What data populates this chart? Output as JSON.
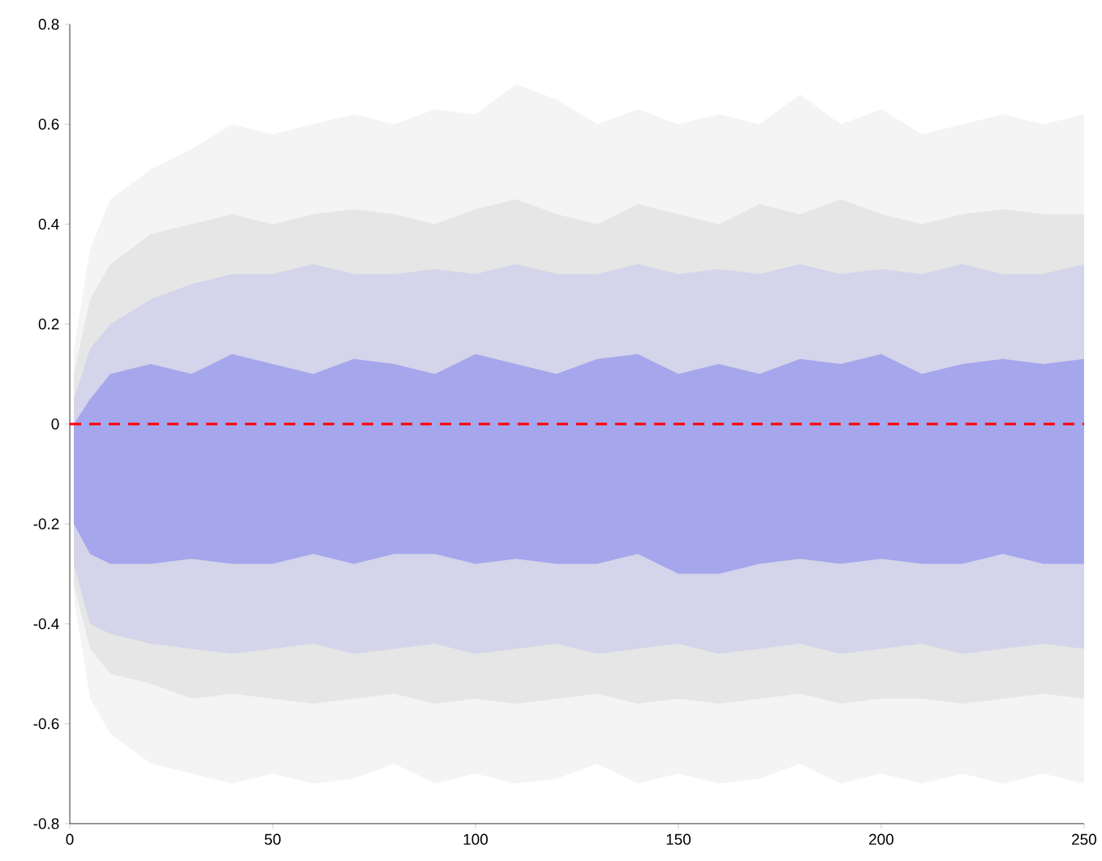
{
  "chart_data": {
    "type": "area",
    "x": [
      1,
      5,
      10,
      20,
      30,
      40,
      50,
      60,
      70,
      80,
      90,
      100,
      110,
      120,
      130,
      140,
      150,
      160,
      170,
      180,
      190,
      200,
      210,
      220,
      230,
      240,
      250
    ],
    "series": [
      {
        "color": "#f4f4f4",
        "values": [
          null,
          null,
          null,
          null,
          null,
          null,
          null,
          null,
          null,
          null,
          null,
          null,
          null,
          null,
          null,
          null,
          null,
          null,
          null,
          null,
          null,
          null,
          null,
          null,
          null,
          null,
          null
        ],
        "upper": [
          0.15,
          0.35,
          0.45,
          0.51,
          0.55,
          0.6,
          0.58,
          0.6,
          0.62,
          0.6,
          0.63,
          0.62,
          0.68,
          0.65,
          0.6,
          0.63,
          0.6,
          0.62,
          0.6,
          0.66,
          0.6,
          0.63,
          0.58,
          0.6,
          0.62,
          0.6,
          0.62
        ],
        "lower": [
          -0.35,
          -0.55,
          -0.62,
          -0.68,
          -0.7,
          -0.72,
          -0.7,
          -0.72,
          -0.71,
          -0.68,
          -0.72,
          -0.7,
          -0.72,
          -0.71,
          -0.68,
          -0.72,
          -0.7,
          -0.72,
          -0.71,
          -0.68,
          -0.72,
          -0.7,
          -0.72,
          -0.7,
          -0.72,
          -0.7,
          -0.72
        ]
      },
      {
        "color": "#e6e6e6",
        "values": [
          null,
          null,
          null,
          null,
          null,
          null,
          null,
          null,
          null,
          null,
          null,
          null,
          null,
          null,
          null,
          null,
          null,
          null,
          null,
          null,
          null,
          null,
          null,
          null,
          null,
          null,
          null
        ],
        "upper": [
          0.1,
          0.25,
          0.32,
          0.38,
          0.4,
          0.42,
          0.4,
          0.42,
          0.43,
          0.42,
          0.4,
          0.43,
          0.45,
          0.42,
          0.4,
          0.44,
          0.42,
          0.4,
          0.44,
          0.42,
          0.45,
          0.42,
          0.4,
          0.42,
          0.43,
          0.42,
          0.42
        ],
        "lower": [
          -0.32,
          -0.45,
          -0.5,
          -0.52,
          -0.55,
          -0.54,
          -0.55,
          -0.56,
          -0.55,
          -0.54,
          -0.56,
          -0.55,
          -0.56,
          -0.55,
          -0.54,
          -0.56,
          -0.55,
          -0.56,
          -0.55,
          -0.54,
          -0.56,
          -0.55,
          -0.55,
          -0.56,
          -0.55,
          -0.54,
          -0.55
        ]
      },
      {
        "color": "#d4d4ea",
        "values": [
          null,
          null,
          null,
          null,
          null,
          null,
          null,
          null,
          null,
          null,
          null,
          null,
          null,
          null,
          null,
          null,
          null,
          null,
          null,
          null,
          null,
          null,
          null,
          null,
          null,
          null,
          null
        ],
        "upper": [
          0.05,
          0.15,
          0.2,
          0.25,
          0.28,
          0.3,
          0.3,
          0.32,
          0.3,
          0.3,
          0.31,
          0.3,
          0.32,
          0.3,
          0.3,
          0.32,
          0.3,
          0.31,
          0.3,
          0.32,
          0.3,
          0.31,
          0.3,
          0.32,
          0.3,
          0.3,
          0.32
        ],
        "lower": [
          -0.28,
          -0.4,
          -0.42,
          -0.44,
          -0.45,
          -0.46,
          -0.45,
          -0.44,
          -0.46,
          -0.45,
          -0.44,
          -0.46,
          -0.45,
          -0.44,
          -0.46,
          -0.45,
          -0.44,
          -0.46,
          -0.45,
          -0.44,
          -0.46,
          -0.45,
          -0.44,
          -0.46,
          -0.45,
          -0.44,
          -0.45
        ]
      },
      {
        "color": "#a6a6ec",
        "values": [
          null,
          null,
          null,
          null,
          null,
          null,
          null,
          null,
          null,
          null,
          null,
          null,
          null,
          null,
          null,
          null,
          null,
          null,
          null,
          null,
          null,
          null,
          null,
          null,
          null,
          null,
          null
        ],
        "upper": [
          0.0,
          0.05,
          0.1,
          0.12,
          0.1,
          0.14,
          0.12,
          0.1,
          0.13,
          0.12,
          0.1,
          0.14,
          0.12,
          0.1,
          0.13,
          0.14,
          0.1,
          0.12,
          0.1,
          0.13,
          0.12,
          0.14,
          0.1,
          0.12,
          0.13,
          0.12,
          0.13
        ],
        "lower": [
          -0.2,
          -0.26,
          -0.28,
          -0.28,
          -0.27,
          -0.28,
          -0.28,
          -0.26,
          -0.28,
          -0.26,
          -0.26,
          -0.28,
          -0.27,
          -0.28,
          -0.28,
          -0.26,
          -0.3,
          -0.3,
          -0.28,
          -0.27,
          -0.28,
          -0.27,
          -0.28,
          -0.28,
          -0.26,
          -0.28,
          -0.28
        ]
      }
    ],
    "ref_lines": [
      {
        "axis": "y",
        "value": 0,
        "color": "#ff0000",
        "line_style": "dashed"
      }
    ],
    "xlim": [
      0,
      250
    ],
    "ylim": [
      -0.8,
      0.8
    ],
    "xticks": [
      0,
      50,
      100,
      150,
      200,
      250
    ],
    "yticks": [
      -0.8,
      -0.6,
      -0.4,
      -0.2,
      0,
      0.2,
      0.4,
      0.6,
      0.8
    ],
    "grid": false
  }
}
